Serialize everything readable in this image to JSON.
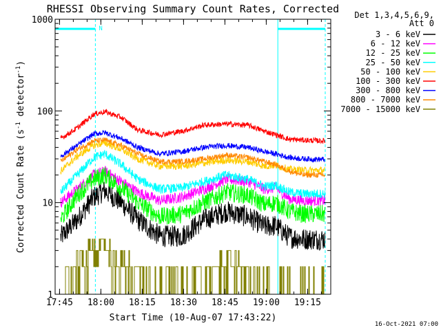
{
  "chart_data": {
    "type": "line",
    "title": "RHESSI Observing Summary Count Rates, Corrected",
    "xlabel": "Start Time (10-Aug-07 17:43:22)",
    "ylabel_main": "Corrected Count Rate (s",
    "ylabel_sup1": "-1",
    "ylabel_mid": " detector",
    "ylabel_sup2": "-1",
    "ylabel_end": ")",
    "y_scale": "log",
    "ylim": [
      1,
      1000
    ],
    "xlim_minutes": [
      0,
      100
    ],
    "x_ticks": [
      {
        "label": "17:45",
        "minutes": 1.6
      },
      {
        "label": "18:00",
        "minutes": 16.6
      },
      {
        "label": "18:15",
        "minutes": 31.6
      },
      {
        "label": "18:30",
        "minutes": 46.6
      },
      {
        "label": "18:45",
        "minutes": 61.6
      },
      {
        "label": "19:00",
        "minutes": 76.6
      },
      {
        "label": "19:15",
        "minutes": 91.6
      }
    ],
    "y_ticks": [
      {
        "label": "1",
        "value": 1
      },
      {
        "label": "10",
        "value": 10
      },
      {
        "label": "100",
        "value": 100
      },
      {
        "label": "1000",
        "value": 1000
      }
    ],
    "legend": {
      "header1": "Det 1,3,4,5,6,9,",
      "header2": "Att 0",
      "placement": "outside-right"
    },
    "night_marker_label": "N",
    "night_bars": [
      {
        "start": 0,
        "end": 14.6
      },
      {
        "start": 80.8,
        "end": 98
      }
    ],
    "solid_vlines": [
      0,
      80.8
    ],
    "dashed_vlines": [
      14.6,
      98
    ],
    "footer_timestamp": "16-Oct-2021 07:00",
    "series": [
      {
        "name": "3 - 6 keV",
        "color": "#000000",
        "x": [
          2,
          8,
          14,
          18,
          24,
          30,
          38,
          46,
          54,
          62,
          70,
          76,
          80,
          85,
          90,
          98
        ],
        "y": [
          4.2,
          6.5,
          11.5,
          13.5,
          10,
          6.5,
          4.3,
          4.3,
          6.5,
          8,
          7,
          5.5,
          5.6,
          4.2,
          4.0,
          4.0
        ],
        "noise": 0.12
      },
      {
        "name": "6 - 12 keV",
        "color": "#ff00ff",
        "x": [
          2,
          8,
          14,
          18,
          24,
          30,
          38,
          46,
          54,
          62,
          70,
          76,
          80,
          85,
          90,
          98
        ],
        "y": [
          10,
          14,
          20,
          22,
          17,
          13,
          10.5,
          11.5,
          14,
          18,
          17,
          14,
          14.5,
          11,
          10.5,
          10.5
        ],
        "noise": 0.06
      },
      {
        "name": "12 - 25 keV",
        "color": "#00ff00",
        "x": [
          2,
          8,
          14,
          18,
          24,
          30,
          38,
          46,
          54,
          62,
          70,
          76,
          80,
          85,
          90,
          98
        ],
        "y": [
          6.5,
          12,
          18,
          20,
          14.5,
          10,
          7,
          7.5,
          10,
          13,
          12,
          9.5,
          10,
          8,
          7.5,
          7.5
        ],
        "noise": 0.1
      },
      {
        "name": "25 - 50 keV",
        "color": "#00ffff",
        "x": [
          2,
          8,
          14,
          18,
          24,
          30,
          38,
          46,
          54,
          62,
          70,
          76,
          80,
          85,
          90,
          98
        ],
        "y": [
          13,
          20,
          31,
          34,
          26,
          18,
          14,
          14.5,
          17,
          20,
          18,
          15,
          15.5,
          13,
          12.5,
          12.5
        ],
        "noise": 0.05
      },
      {
        "name": "50 - 100 keV",
        "color": "#ffcc00",
        "x": [
          2,
          8,
          14,
          18,
          24,
          30,
          38,
          46,
          54,
          62,
          70,
          76,
          80,
          85,
          90,
          98
        ],
        "y": [
          22,
          32,
          42,
          45,
          38,
          30,
          25,
          25,
          27,
          29,
          28,
          25,
          25.5,
          23,
          22.5,
          22.5
        ],
        "noise": 0.04
      },
      {
        "name": "100 - 300 keV",
        "color": "#ff0000",
        "x": [
          2,
          8,
          14,
          18,
          24,
          30,
          38,
          46,
          54,
          62,
          70,
          76,
          80,
          85,
          90,
          98
        ],
        "y": [
          50,
          65,
          92,
          98,
          85,
          62,
          55,
          60,
          70,
          72,
          70,
          60,
          55,
          49,
          48,
          47
        ],
        "noise": 0.03
      },
      {
        "name": "300 - 800 keV",
        "color": "#0000ff",
        "x": [
          2,
          8,
          14,
          18,
          24,
          30,
          38,
          46,
          54,
          62,
          70,
          76,
          80,
          85,
          90,
          98
        ],
        "y": [
          32,
          42,
          56,
          58,
          50,
          40,
          34,
          36,
          40,
          42,
          40,
          36,
          34,
          31,
          30,
          29.5
        ],
        "noise": 0.03
      },
      {
        "name": "800 - 7000 keV",
        "color": "#ff8800",
        "x": [
          2,
          8,
          14,
          18,
          24,
          30,
          38,
          46,
          54,
          62,
          70,
          76,
          80,
          85,
          90,
          98
        ],
        "y": [
          28,
          38,
          47,
          48,
          42,
          34,
          28,
          28,
          30,
          33,
          31,
          28,
          26,
          22,
          20,
          20
        ],
        "noise": 0.03
      },
      {
        "name": "7000 - 15000 keV",
        "color": "#808000",
        "x": [
          2,
          8,
          14,
          18,
          24,
          30,
          38,
          46,
          54,
          62,
          70,
          76,
          80,
          85,
          90,
          98
        ],
        "y": [
          1,
          2.0,
          3.0,
          3.0,
          2.0,
          1.5,
          1,
          1,
          1.5,
          2,
          1.5,
          1,
          1,
          1,
          1,
          1
        ],
        "noise": 0,
        "kind": "step"
      }
    ]
  }
}
